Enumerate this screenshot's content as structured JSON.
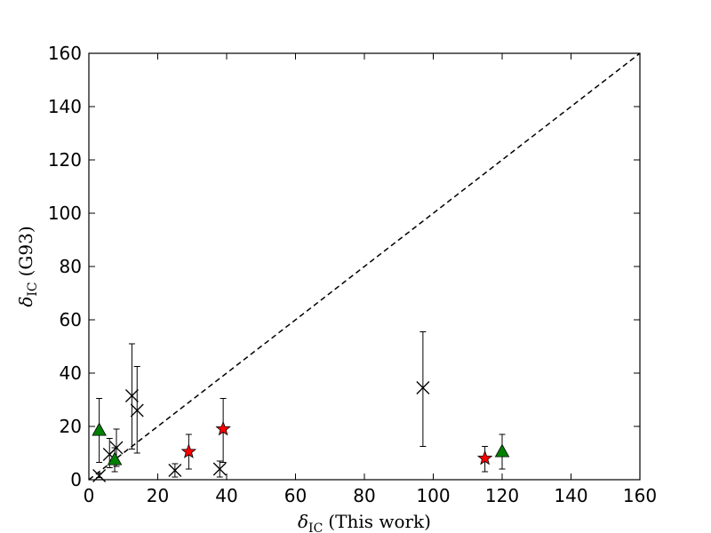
{
  "chart_data": {
    "type": "scatter",
    "xlim": [
      0,
      160
    ],
    "ylim": [
      0,
      160
    ],
    "x_ticks": [
      0,
      20,
      40,
      60,
      80,
      100,
      120,
      140,
      160
    ],
    "y_ticks": [
      0,
      20,
      40,
      60,
      80,
      100,
      120,
      140,
      160
    ],
    "grid": false,
    "xlabel": {
      "symbol": "δ",
      "subscript": "IC",
      "rest": "(This work)"
    },
    "ylabel": {
      "symbol": "δ",
      "subscript": "IC",
      "rest": "(G93)"
    },
    "reference_line": {
      "style": "dashed",
      "color": "#000000",
      "from": [
        0,
        0
      ],
      "to": [
        160,
        160
      ]
    },
    "series": [
      {
        "marker": "x",
        "color": "#000000",
        "points": [
          {
            "x": 3.0,
            "y": 1.5,
            "ylo": 0.8,
            "yhi": 2.5
          },
          {
            "x": 6.0,
            "y": 9.5,
            "ylo": 4.5,
            "yhi": 15.5
          },
          {
            "x": 8.0,
            "y": 12.0,
            "ylo": 5.0,
            "yhi": 19.0
          },
          {
            "x": 12.5,
            "y": 31.5,
            "ylo": 11.5,
            "yhi": 51.0
          },
          {
            "x": 14.0,
            "y": 26.0,
            "ylo": 10.0,
            "yhi": 42.5
          },
          {
            "x": 25.0,
            "y": 3.5,
            "ylo": 1.0,
            "yhi": 6.0
          },
          {
            "x": 38.0,
            "y": 4.0,
            "ylo": 1.0,
            "yhi": 7.0
          },
          {
            "x": 97.0,
            "y": 34.5,
            "ylo": 12.5,
            "yhi": 55.5
          }
        ]
      },
      {
        "marker": "star",
        "color": "#ff0000",
        "points": [
          {
            "x": 29.0,
            "y": 10.5,
            "ylo": 4.0,
            "yhi": 17.0
          },
          {
            "x": 39.0,
            "y": 19.0,
            "ylo": 6.5,
            "yhi": 30.5
          },
          {
            "x": 115.0,
            "y": 8.0,
            "ylo": 3.0,
            "yhi": 12.5
          }
        ]
      },
      {
        "marker": "triangle",
        "color": "#008000",
        "points": [
          {
            "x": 3.0,
            "y": 18.5,
            "ylo": 6.5,
            "yhi": 30.5
          },
          {
            "x": 7.5,
            "y": 7.5,
            "ylo": 3.0,
            "yhi": 12.0
          },
          {
            "x": 120.0,
            "y": 10.5,
            "ylo": 4.0,
            "yhi": 17.0
          }
        ]
      }
    ]
  }
}
